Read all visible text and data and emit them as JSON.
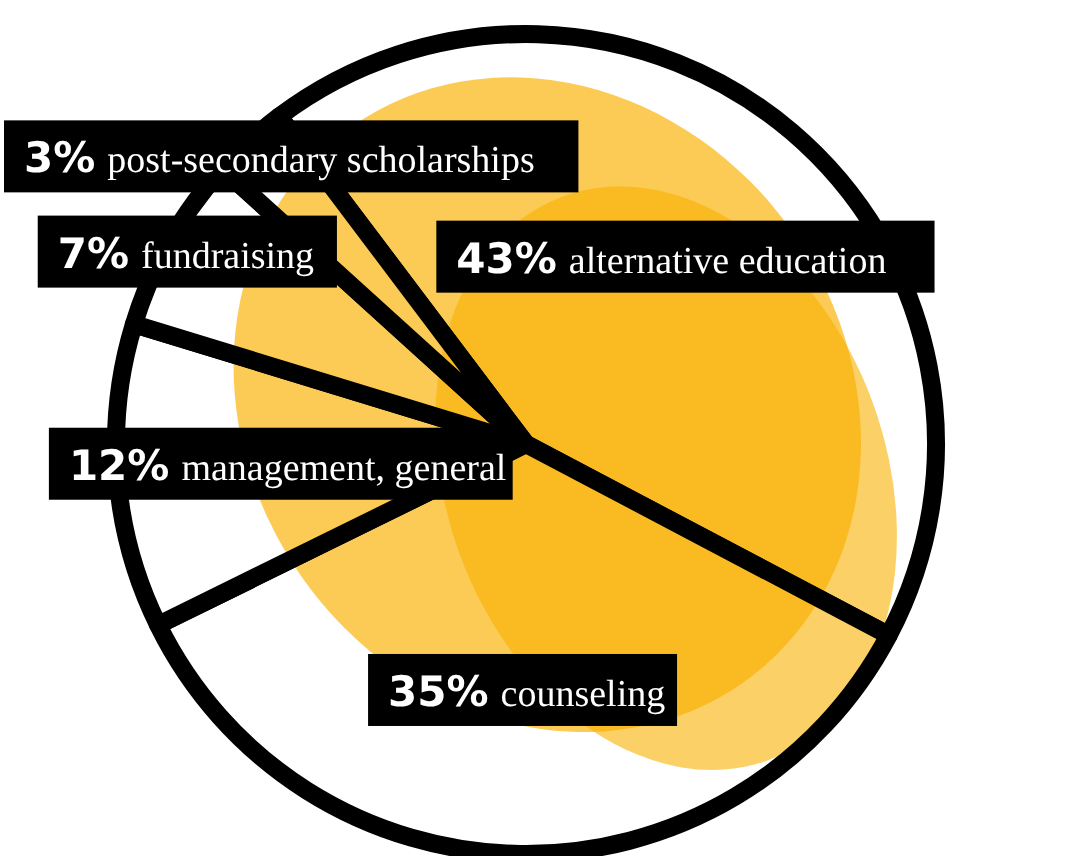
{
  "chart_data": {
    "type": "pie",
    "categories": [
      "alternative education",
      "counseling",
      "management, general",
      "fundraising",
      "post-secondary scholarships"
    ],
    "values": [
      43,
      35,
      12,
      7,
      3
    ],
    "value_labels": [
      "43%",
      "35%",
      "12%",
      "7%",
      "3%"
    ],
    "colors": [
      "#ffffff",
      "#ffffff",
      "#ffffff",
      "#ffffff",
      "#ffffff"
    ]
  }
}
